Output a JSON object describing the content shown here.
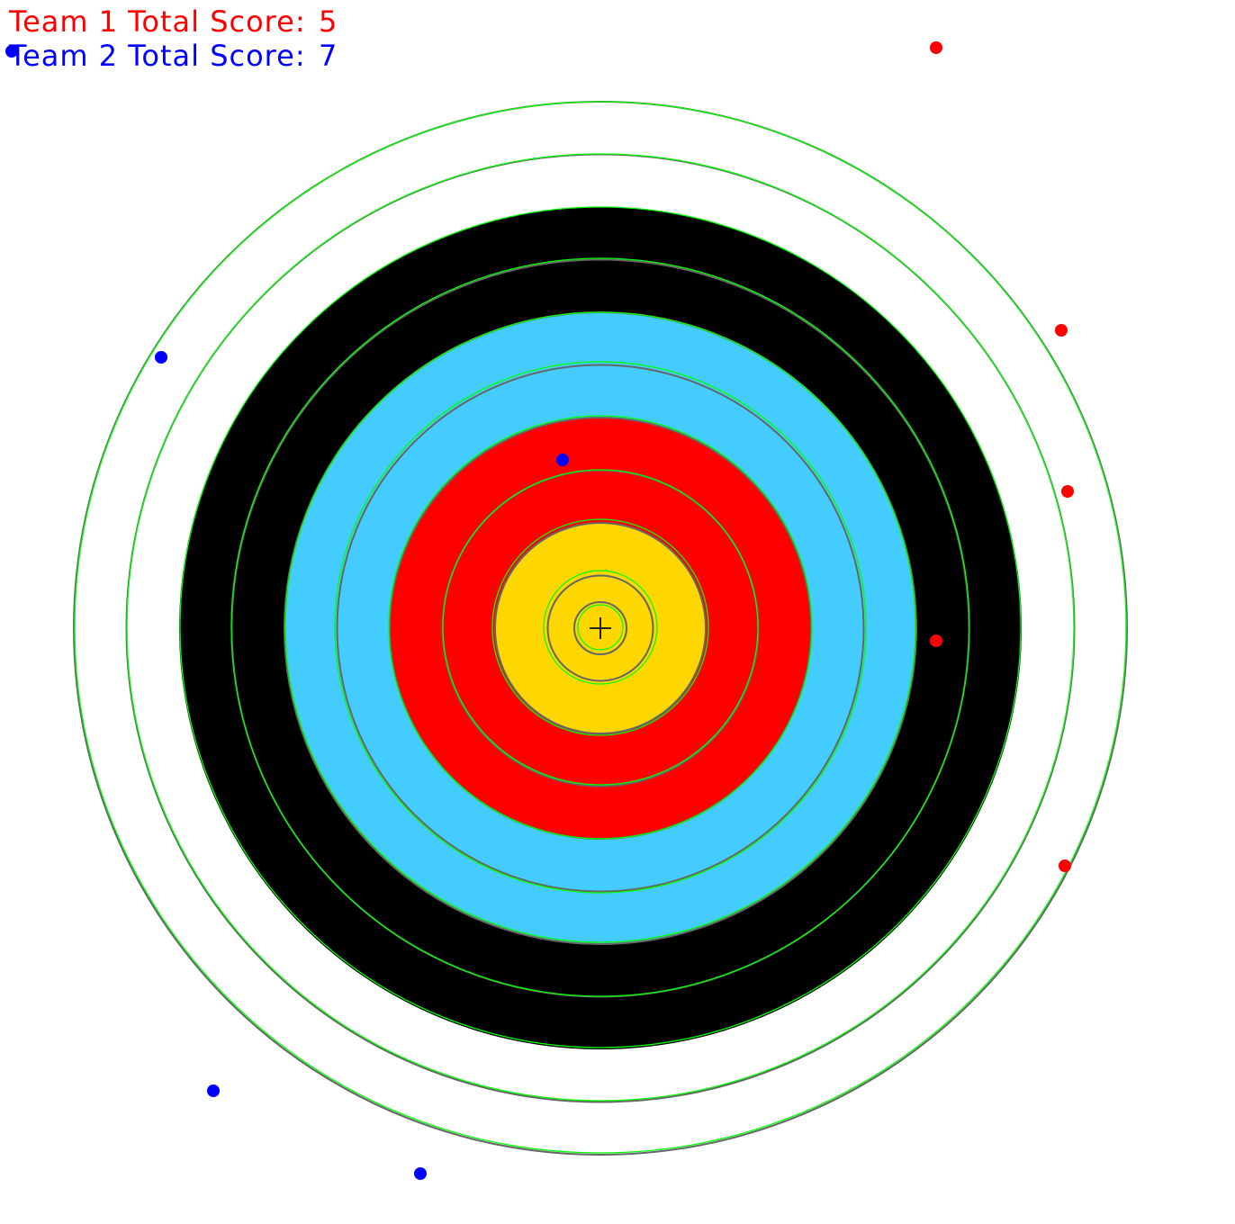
{
  "scoreboard": {
    "team1": {
      "label": "Team 1 Total Score:",
      "score": "5",
      "color": "#ff0000"
    },
    "team2": {
      "label": "Team 2 Total Score:",
      "score": "7",
      "color": "#0000ff"
    }
  },
  "target": {
    "ring_colors": [
      "#ffffff",
      "#ffffff",
      "#000000",
      "#000000",
      "#44ccff",
      "#44ccff",
      "#ff0000",
      "#ff0000",
      "#ffd700",
      "#ffd700"
    ],
    "line_color": "#666666",
    "detection_outline_color": "#00ff00",
    "center_marker": "crosshair-icon"
  },
  "hits": {
    "team1_color": "#ff0000",
    "team2_color": "#0000ff"
  }
}
